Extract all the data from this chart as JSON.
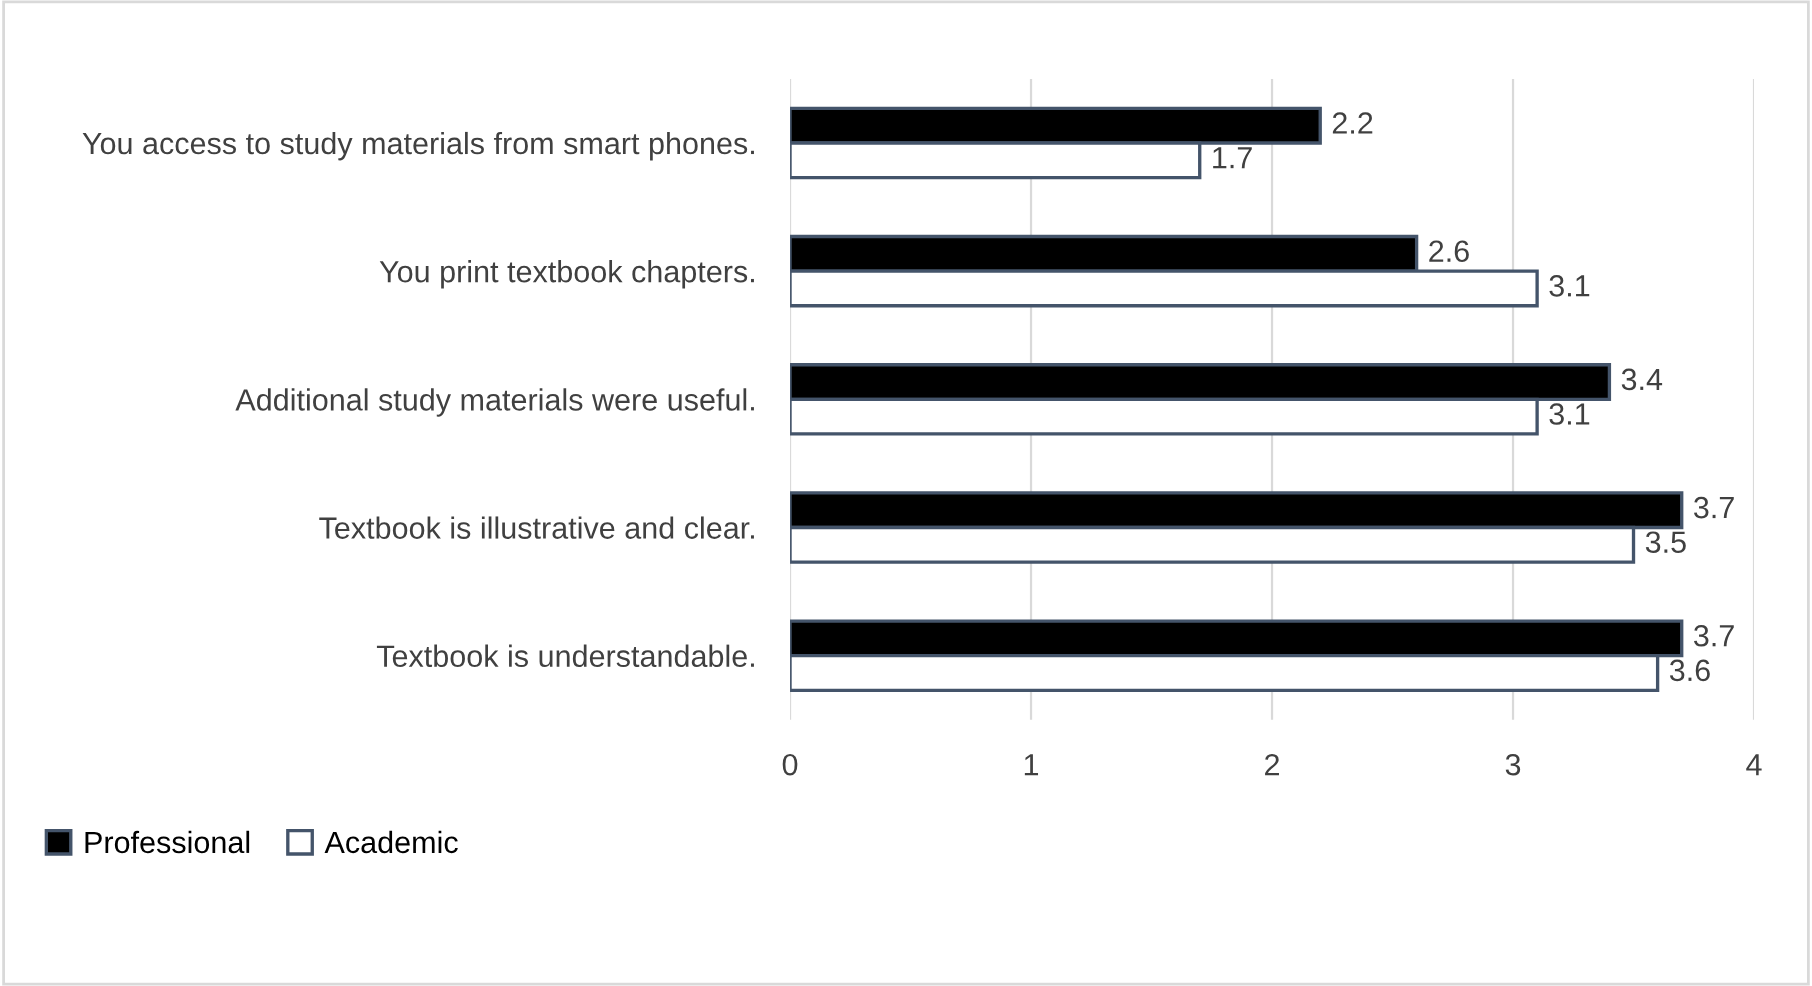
{
  "chart_data": {
    "type": "bar",
    "orientation": "horizontal",
    "categories": [
      "You access to study materials from smart phones.",
      "You print textbook chapters.",
      "Additional study materials were useful.",
      "Textbook is illustrative and clear.",
      "Textbook is understandable."
    ],
    "series": [
      {
        "name": "Professional",
        "color": "#000000",
        "values": [
          2.2,
          2.6,
          3.4,
          3.7,
          3.7
        ]
      },
      {
        "name": "Academic",
        "color": "#ffffff",
        "values": [
          1.7,
          3.1,
          3.1,
          3.5,
          3.6
        ]
      }
    ],
    "xlim": [
      0,
      4
    ],
    "xticks": [
      0,
      1,
      2,
      3,
      4
    ],
    "grid": "x",
    "legend": "bottom left",
    "data_labels": true
  }
}
